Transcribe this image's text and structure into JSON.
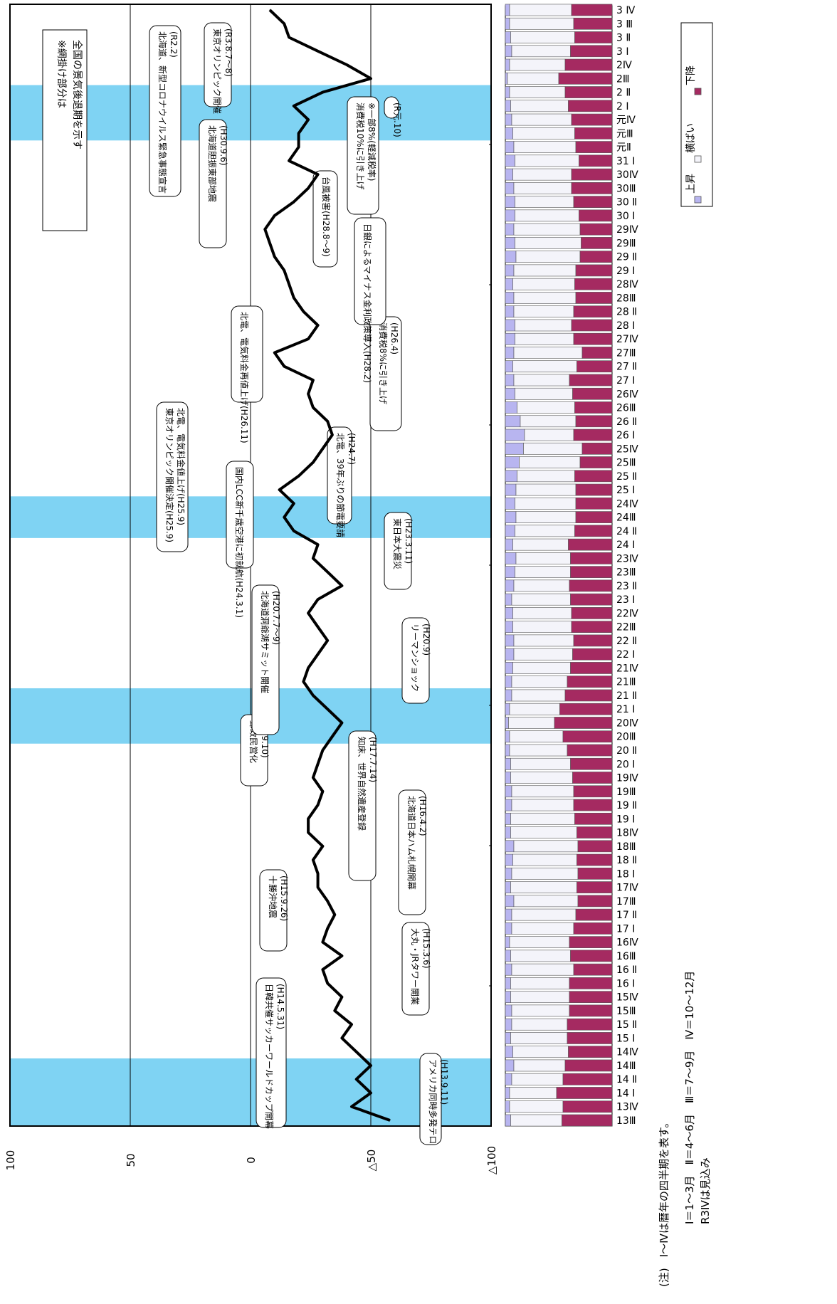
{
  "chart_data": [
    {
      "type": "line",
      "y_axis_ticks": [
        "100",
        "50",
        "0",
        "△50",
        "△100"
      ],
      "ylim": [
        -100,
        100
      ],
      "x": [
        "13Ⅲ",
        "13Ⅳ",
        "14Ⅰ",
        "14Ⅱ",
        "14Ⅲ",
        "14Ⅳ",
        "15Ⅰ",
        "15Ⅱ",
        "15Ⅲ",
        "15Ⅳ",
        "16Ⅰ",
        "16Ⅱ",
        "16Ⅲ",
        "16Ⅳ",
        "17Ⅰ",
        "17Ⅱ",
        "17Ⅲ",
        "17Ⅳ",
        "18Ⅰ",
        "18Ⅱ",
        "18Ⅲ",
        "18Ⅳ",
        "19Ⅰ",
        "19Ⅱ",
        "19Ⅲ",
        "19Ⅳ",
        "20Ⅰ",
        "20Ⅱ",
        "20Ⅲ",
        "20Ⅳ",
        "21Ⅰ",
        "21Ⅱ",
        "21Ⅲ",
        "21Ⅳ",
        "22Ⅰ",
        "22Ⅱ",
        "22Ⅲ",
        "22Ⅳ",
        "23Ⅰ",
        "23Ⅱ",
        "23Ⅲ",
        "23Ⅳ",
        "24Ⅰ",
        "24Ⅱ",
        "24Ⅲ",
        "24Ⅳ",
        "25Ⅰ",
        "25Ⅱ",
        "25Ⅲ",
        "25Ⅳ",
        "26Ⅰ",
        "26Ⅱ",
        "26Ⅲ",
        "26Ⅳ",
        "27Ⅰ",
        "27Ⅱ",
        "27Ⅲ",
        "27Ⅳ",
        "28Ⅰ",
        "28Ⅱ",
        "28Ⅲ",
        "28Ⅳ",
        "29Ⅰ",
        "29Ⅱ",
        "29Ⅲ",
        "29Ⅳ",
        "30Ⅰ",
        "30Ⅱ",
        "30Ⅲ",
        "30Ⅳ",
        "31Ⅰ",
        "元Ⅱ",
        "元Ⅲ",
        "元Ⅳ",
        "2Ⅰ",
        "2Ⅱ",
        "2Ⅲ",
        "2Ⅳ",
        "3Ⅰ",
        "3Ⅱ",
        "3Ⅲ",
        "3Ⅳ"
      ],
      "values": [
        -58,
        -42,
        -50,
        -44,
        -50,
        -44,
        -38,
        -42,
        -35,
        -38,
        -32,
        -30,
        -38,
        -30,
        -32,
        -35,
        -32,
        -28,
        -28,
        -26,
        -30,
        -24,
        -24,
        -28,
        -30,
        -26,
        -28,
        -30,
        -34,
        -38,
        -32,
        -26,
        -22,
        -24,
        -28,
        -32,
        -28,
        -24,
        -28,
        -38,
        -32,
        -26,
        -28,
        -18,
        -14,
        -18,
        -12,
        -20,
        -26,
        -30,
        -34,
        -32,
        -26,
        -24,
        -26,
        -14,
        -10,
        -24,
        -28,
        -22,
        -18,
        -16,
        -14,
        -10,
        -8,
        -6,
        -10,
        -18,
        -24,
        -28,
        -16,
        -20,
        -20,
        -24,
        -18,
        -30,
        -50,
        -40,
        -28,
        -16,
        -14,
        -8
      ],
      "shaded_recession_periods": [
        [
          "13Ⅲ",
          "14Ⅲ"
        ],
        [
          "20Ⅲ",
          "21Ⅱ"
        ],
        [
          "24Ⅱ",
          "24Ⅳ"
        ],
        [
          "元Ⅲ",
          "2Ⅱ"
        ]
      ],
      "annotations": [
        {
          "text": "アメリカ同時多発テロ",
          "date": "(H13.9.11)"
        },
        {
          "text": "日韓共催サッカーワールドカップ開幕",
          "date": "(H14.5.31)"
        },
        {
          "text": "大丸・JRタワー開業",
          "date": "(H15.3.6)"
        },
        {
          "text": "十勝沖地震",
          "date": "(H15.9.26)"
        },
        {
          "text": "北海道日本ハム札幌開幕",
          "date": "(H16.4.2)"
        },
        {
          "text": "知床、世界自然遺産登録",
          "date": "(H17.7.14)"
        },
        {
          "text": "郵政民営化",
          "date": "(H19.10)"
        },
        {
          "text": "リーマンショック",
          "date": "(H20.9)"
        },
        {
          "text": "北海道洞爺湖サミット開催",
          "date": "(H20.7.7～9)"
        },
        {
          "text": "東日本大震災",
          "date": "(H23.3.11)"
        },
        {
          "text": "国内LCC新千歳空港に初就航(H24.3.1)",
          "date": ""
        },
        {
          "text": "北電、39年ぶりの節電要請",
          "date": "(H24.7)"
        },
        {
          "text": "東京オリンピック開催決定(H25.9)",
          "date": "北電、電気料金値上げ(H25.9)"
        },
        {
          "text": "消費税8%に引き上げ",
          "date": "(H26.4)"
        },
        {
          "text": "北電、電気料金再値上げ(H26.11)",
          "date": ""
        },
        {
          "text": "日銀によるマイナス金利政策導入(H28.2)",
          "date": ""
        },
        {
          "text": "台風被害(H28.8～9)",
          "date": ""
        },
        {
          "text": "北海道胆振東部地震",
          "date": "(H30.9.6)"
        },
        {
          "text": "消費税10%に引き上げ",
          "date": "※一部8%(軽減税率)"
        },
        {
          "text": "(R元.10)",
          "date": ""
        },
        {
          "text": "北海道、新型コロナウイルス緊急事態宣言",
          "date": "(R2.2)"
        },
        {
          "text": "東京オリンピック開催",
          "date": "(R3.8.7～8)"
        }
      ],
      "note": [
        "※網掛け部分は",
        "全国の景気後退期を示す"
      ]
    },
    {
      "type": "bar",
      "stacked": true,
      "orientation": "horizontal",
      "series": [
        {
          "name": "上昇",
          "color": "#b8b5f0",
          "values": [
            5,
            4,
            4,
            6,
            8,
            7,
            5,
            6,
            6,
            5,
            5,
            6,
            5,
            4,
            6,
            6,
            8,
            5,
            6,
            7,
            8,
            5,
            5,
            6,
            6,
            5,
            5,
            4,
            4,
            3,
            4,
            6,
            6,
            7,
            8,
            8,
            7,
            7,
            6,
            8,
            9,
            10,
            7,
            9,
            10,
            9,
            10,
            11,
            13,
            17,
            18,
            14,
            11,
            9,
            8,
            7,
            8,
            9,
            9,
            8,
            8,
            7,
            8,
            10,
            9,
            8,
            9,
            9,
            8,
            7,
            9,
            8,
            7,
            6,
            5,
            4,
            2,
            4,
            6,
            5,
            4,
            4
          ]
        },
        {
          "name": "横ばい",
          "color": "#f4f4fa",
          "values": [
            48,
            50,
            44,
            48,
            48,
            52,
            53,
            52,
            54,
            55,
            55,
            58,
            56,
            56,
            58,
            60,
            60,
            62,
            62,
            60,
            60,
            62,
            60,
            58,
            58,
            58,
            56,
            54,
            50,
            43,
            47,
            50,
            52,
            54,
            55,
            56,
            55,
            55,
            55,
            52,
            52,
            51,
            52,
            56,
            56,
            57,
            56,
            54,
            57,
            55,
            46,
            52,
            54,
            54,
            52,
            60,
            64,
            55,
            53,
            56,
            58,
            58,
            58,
            60,
            62,
            62,
            60,
            55,
            54,
            55,
            60,
            58,
            58,
            56,
            54,
            52,
            48,
            52,
            55,
            60,
            60,
            58
          ]
        },
        {
          "name": "下降",
          "color": "#a52a61",
          "values": [
            47,
            46,
            52,
            46,
            44,
            41,
            42,
            42,
            40,
            40,
            40,
            36,
            39,
            40,
            36,
            34,
            32,
            33,
            32,
            33,
            32,
            33,
            35,
            36,
            36,
            37,
            39,
            42,
            46,
            54,
            49,
            44,
            42,
            39,
            37,
            36,
            38,
            38,
            39,
            40,
            39,
            39,
            41,
            35,
            34,
            34,
            34,
            35,
            30,
            28,
            36,
            34,
            35,
            37,
            40,
            33,
            28,
            36,
            38,
            36,
            34,
            35,
            34,
            30,
            29,
            30,
            31,
            36,
            38,
            38,
            31,
            34,
            35,
            38,
            41,
            44,
            50,
            44,
            39,
            35,
            36,
            38
          ]
        }
      ],
      "categories": [
        "13Ⅲ",
        "13Ⅳ",
        "14Ⅰ",
        "14Ⅱ",
        "14Ⅲ",
        "14Ⅳ",
        "15Ⅰ",
        "15Ⅱ",
        "15Ⅲ",
        "15Ⅳ",
        "16Ⅰ",
        "16Ⅱ",
        "16Ⅲ",
        "16Ⅳ",
        "17Ⅰ",
        "17Ⅱ",
        "17Ⅲ",
        "17Ⅳ",
        "18Ⅰ",
        "18Ⅱ",
        "18Ⅲ",
        "18Ⅳ",
        "19Ⅰ",
        "19Ⅱ",
        "19Ⅲ",
        "19Ⅳ",
        "20Ⅰ",
        "20Ⅱ",
        "20Ⅲ",
        "20Ⅳ",
        "21Ⅰ",
        "21Ⅱ",
        "21Ⅲ",
        "21Ⅳ",
        "22Ⅰ",
        "22Ⅱ",
        "22Ⅲ",
        "22Ⅳ",
        "23Ⅰ",
        "23Ⅱ",
        "23Ⅲ",
        "23Ⅳ",
        "24Ⅰ",
        "24Ⅱ",
        "24Ⅲ",
        "24Ⅳ",
        "25Ⅰ",
        "25Ⅱ",
        "25Ⅲ",
        "25Ⅳ",
        "26Ⅰ",
        "26Ⅱ",
        "26Ⅲ",
        "26Ⅳ",
        "27Ⅰ",
        "27Ⅱ",
        "27Ⅲ",
        "27Ⅳ",
        "28Ⅰ",
        "28Ⅱ",
        "28Ⅲ",
        "28Ⅳ",
        "29Ⅰ",
        "29Ⅱ",
        "29Ⅲ",
        "29Ⅳ",
        "30Ⅰ",
        "30Ⅱ",
        "30Ⅲ",
        "30Ⅳ",
        "31Ⅰ",
        "元Ⅱ",
        "元Ⅲ",
        "元Ⅳ",
        "2Ⅰ",
        "2Ⅱ",
        "2Ⅲ",
        "2Ⅳ",
        "3Ⅰ",
        "3Ⅱ",
        "3Ⅲ",
        "3Ⅳ"
      ],
      "category_labels": [
        "13Ⅲ",
        "13Ⅳ",
        "14 Ⅰ",
        "14 Ⅱ",
        "14Ⅲ",
        "14Ⅳ",
        "15 Ⅰ",
        "15 Ⅱ",
        "15Ⅲ",
        "15Ⅳ",
        "16 Ⅰ",
        "16 Ⅱ",
        "16Ⅲ",
        "16Ⅳ",
        "17 Ⅰ",
        "17 Ⅱ",
        "17Ⅲ",
        "17Ⅳ",
        "18 Ⅰ",
        "18 Ⅱ",
        "18Ⅲ",
        "18Ⅳ",
        "19 Ⅰ",
        "19 Ⅱ",
        "19Ⅲ",
        "19Ⅳ",
        "20 Ⅰ",
        "20 Ⅱ",
        "20Ⅲ",
        "20Ⅳ",
        "21 Ⅰ",
        "21 Ⅱ",
        "21Ⅲ",
        "21Ⅳ",
        "22 Ⅰ",
        "22 Ⅱ",
        "22Ⅲ",
        "22Ⅳ",
        "23 Ⅰ",
        "23 Ⅱ",
        "23Ⅲ",
        "23Ⅳ",
        "24 Ⅰ",
        "24 Ⅱ",
        "24Ⅲ",
        "24Ⅳ",
        "25 Ⅰ",
        "25 Ⅱ",
        "25Ⅲ",
        "25Ⅳ",
        "26 Ⅰ",
        "26 Ⅱ",
        "26Ⅲ",
        "26Ⅳ",
        "27 Ⅰ",
        "27 Ⅱ",
        "27Ⅲ",
        "27Ⅳ",
        "28 Ⅰ",
        "28 Ⅱ",
        "28Ⅲ",
        "28Ⅳ",
        "29 Ⅰ",
        "29 Ⅱ",
        "29Ⅲ",
        "29Ⅳ",
        "30 Ⅰ",
        "30 Ⅱ",
        "30Ⅲ",
        "30Ⅳ",
        "31 Ⅰ",
        "元Ⅱ",
        "元Ⅲ",
        "元Ⅳ",
        "2 Ⅰ",
        "2 Ⅱ",
        "2Ⅲ",
        "2Ⅳ",
        "3 Ⅰ",
        "3 Ⅱ",
        "3 Ⅲ",
        "3 Ⅳ"
      ],
      "legend": [
        "上昇",
        "横ばい",
        "下降"
      ],
      "legend_position": "top-right"
    }
  ],
  "footnote": [
    "(注)　Ⅰ～Ⅳは暦年の四半期を表す。",
    "Ⅰ＝1～3月　Ⅱ＝4～6月　Ⅲ＝7～9月　Ⅳ＝10～12月",
    "R3Ⅳは見込み"
  ],
  "colors": {
    "shade": "#7fd3f3",
    "up": "#b8b5f0",
    "flat": "#f4f4fa",
    "down": "#a52a61",
    "line": "#000000"
  }
}
